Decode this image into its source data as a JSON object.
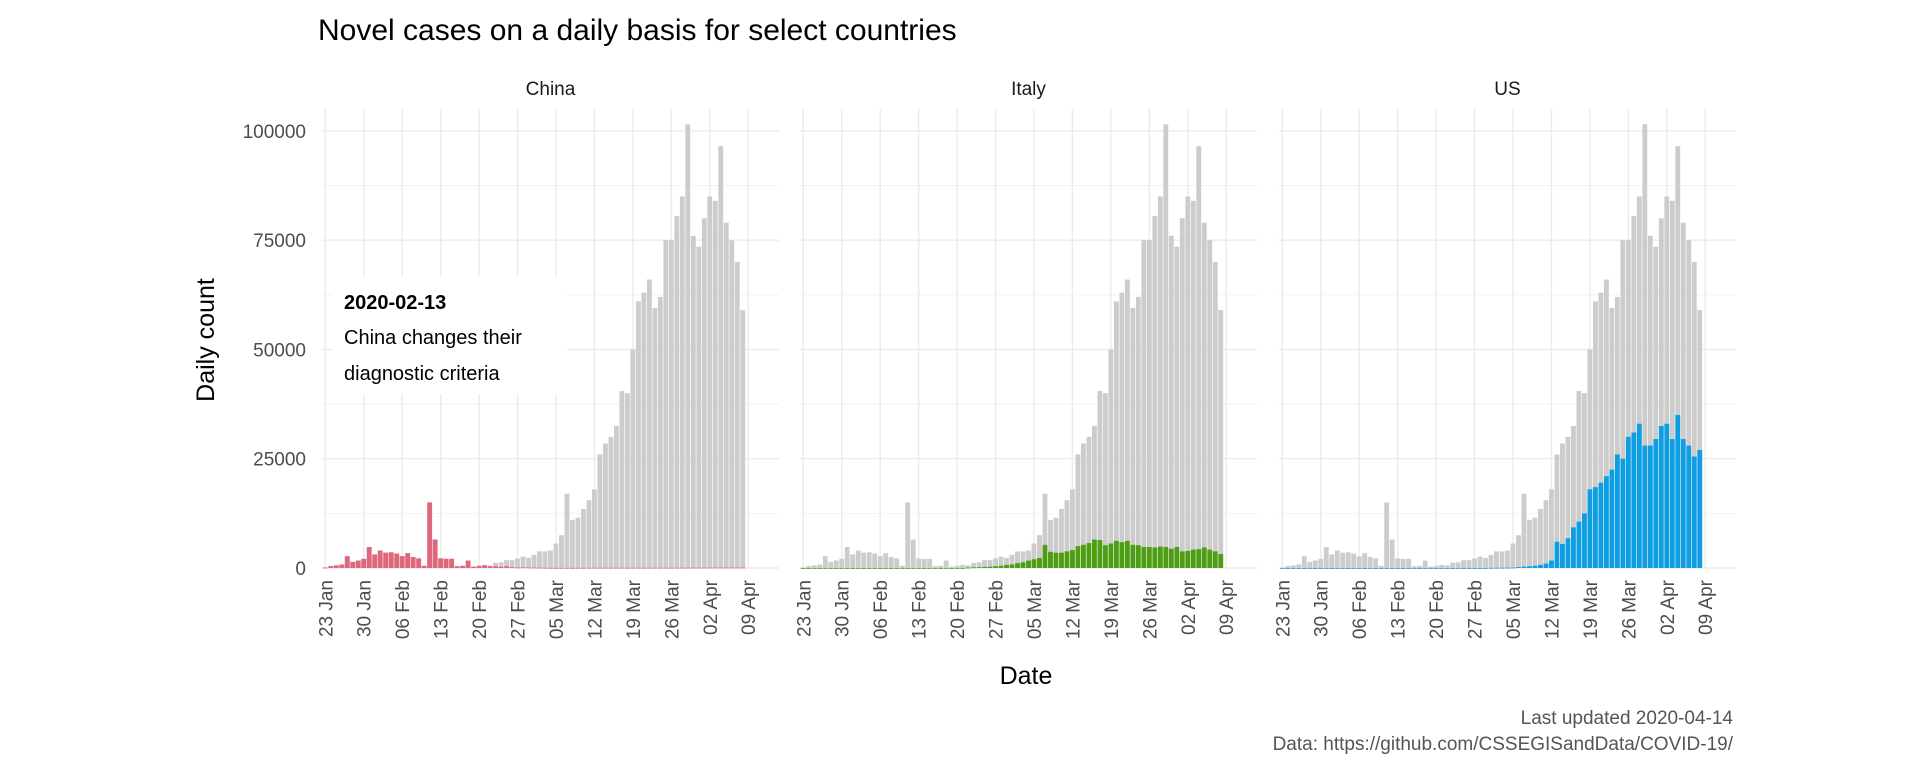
{
  "chart_data": {
    "type": "bar",
    "title": "Novel cases on a daily basis for select countries",
    "xlabel": "Date",
    "ylabel": "Daily count",
    "ylim": [
      0,
      105000
    ],
    "yticks": [
      0,
      25000,
      50000,
      75000,
      100000
    ],
    "ytick_labels": [
      "0",
      "25000",
      "50000",
      "75000",
      "100000"
    ],
    "x_start": "2020-01-23",
    "x_end": "2020-04-14",
    "xticks": [
      "2020-01-23",
      "2020-01-30",
      "2020-02-06",
      "2020-02-13",
      "2020-02-20",
      "2020-02-27",
      "2020-03-05",
      "2020-03-12",
      "2020-03-19",
      "2020-03-26",
      "2020-04-02",
      "2020-04-09"
    ],
    "xtick_labels": [
      "23 Jan",
      "30 Jan",
      "06 Feb",
      "13 Feb",
      "20 Feb",
      "27 Feb",
      "05 Mar",
      "12 Mar",
      "19 Mar",
      "26 Mar",
      "02 Apr",
      "09 Apr"
    ],
    "grid": true,
    "background_series": {
      "color": "#cccccc",
      "values": [
        100,
        450,
        600,
        800,
        2700,
        1400,
        1700,
        2100,
        4800,
        3100,
        4000,
        3500,
        3600,
        3300,
        2700,
        3400,
        2500,
        2200,
        500,
        15000,
        6500,
        2200,
        2100,
        2100,
        400,
        500,
        1700,
        300,
        500,
        700,
        600,
        1200,
        1300,
        1800,
        1800,
        2200,
        2600,
        2300,
        3000,
        3800,
        3800,
        4000,
        5600,
        7500,
        17000,
        11000,
        11500,
        13500,
        15500,
        18000,
        26000,
        28500,
        30000,
        32500,
        40500,
        40000,
        50000,
        61000,
        63000,
        66000,
        59500,
        62000,
        75000,
        75000,
        80500,
        85000,
        101500,
        76000,
        73500,
        80000,
        85000,
        84000,
        96500,
        79000,
        75000,
        70000,
        59000
      ]
    },
    "panels": [
      {
        "title": "China",
        "color": "#e0667c",
        "values": [
          100,
          450,
          600,
          800,
          2700,
          1400,
          1700,
          2100,
          4800,
          3100,
          4000,
          3500,
          3600,
          3300,
          2700,
          3400,
          2500,
          2200,
          500,
          15000,
          6500,
          2200,
          2100,
          2100,
          400,
          500,
          1700,
          300,
          500,
          600,
          400,
          400,
          300,
          400,
          200,
          120,
          150,
          120,
          100,
          80,
          50,
          30,
          20,
          20,
          20,
          20,
          30,
          40,
          50,
          60,
          50,
          50,
          50,
          60,
          50,
          50,
          50,
          50,
          50,
          50,
          60,
          60,
          60,
          60,
          60,
          70,
          70,
          80,
          80,
          80,
          90,
          90,
          90,
          100,
          100,
          100,
          100
        ],
        "annotation": {
          "date": "2020-02-13",
          "heading": "2020-02-13",
          "lines": [
            "China changes their",
            "diagnostic criteria"
          ]
        }
      },
      {
        "title": "Italy",
        "color": "#4d9e13",
        "values": [
          0,
          0,
          0,
          0,
          0,
          0,
          0,
          0,
          0,
          0,
          0,
          0,
          0,
          0,
          0,
          0,
          0,
          0,
          0,
          0,
          0,
          0,
          0,
          0,
          0,
          0,
          0,
          0,
          0,
          0,
          100,
          150,
          200,
          250,
          300,
          400,
          500,
          700,
          800,
          1100,
          1300,
          1700,
          2000,
          2300,
          5300,
          3700,
          3500,
          3500,
          3800,
          4100,
          5000,
          5300,
          5700,
          6500,
          6400,
          5200,
          5600,
          6200,
          5900,
          6200,
          5300,
          5200,
          4800,
          4800,
          4700,
          4900,
          4800,
          4400,
          4800,
          3800,
          3900,
          4200,
          4300,
          4700,
          4200,
          3800,
          3200
        ]
      },
      {
        "title": "US",
        "color": "#0d9ee4",
        "values": [
          0,
          0,
          0,
          0,
          0,
          0,
          0,
          0,
          0,
          0,
          0,
          0,
          0,
          0,
          0,
          0,
          0,
          0,
          0,
          0,
          0,
          0,
          0,
          0,
          0,
          0,
          0,
          0,
          0,
          0,
          0,
          0,
          0,
          0,
          0,
          0,
          0,
          0,
          30,
          50,
          60,
          80,
          100,
          200,
          300,
          400,
          500,
          700,
          1000,
          1700,
          6000,
          5500,
          6800,
          9300,
          10600,
          12500,
          18000,
          18500,
          19500,
          21000,
          22500,
          26000,
          25000,
          30000,
          31000,
          33000,
          28000,
          28000,
          29500,
          32500,
          33000,
          29500,
          35000,
          29500,
          28000,
          25500,
          27000
        ]
      }
    ],
    "caption": [
      "Last updated 2020-04-14",
      "Data: https://github.com/CSSEGISandData/COVID-19/"
    ]
  }
}
